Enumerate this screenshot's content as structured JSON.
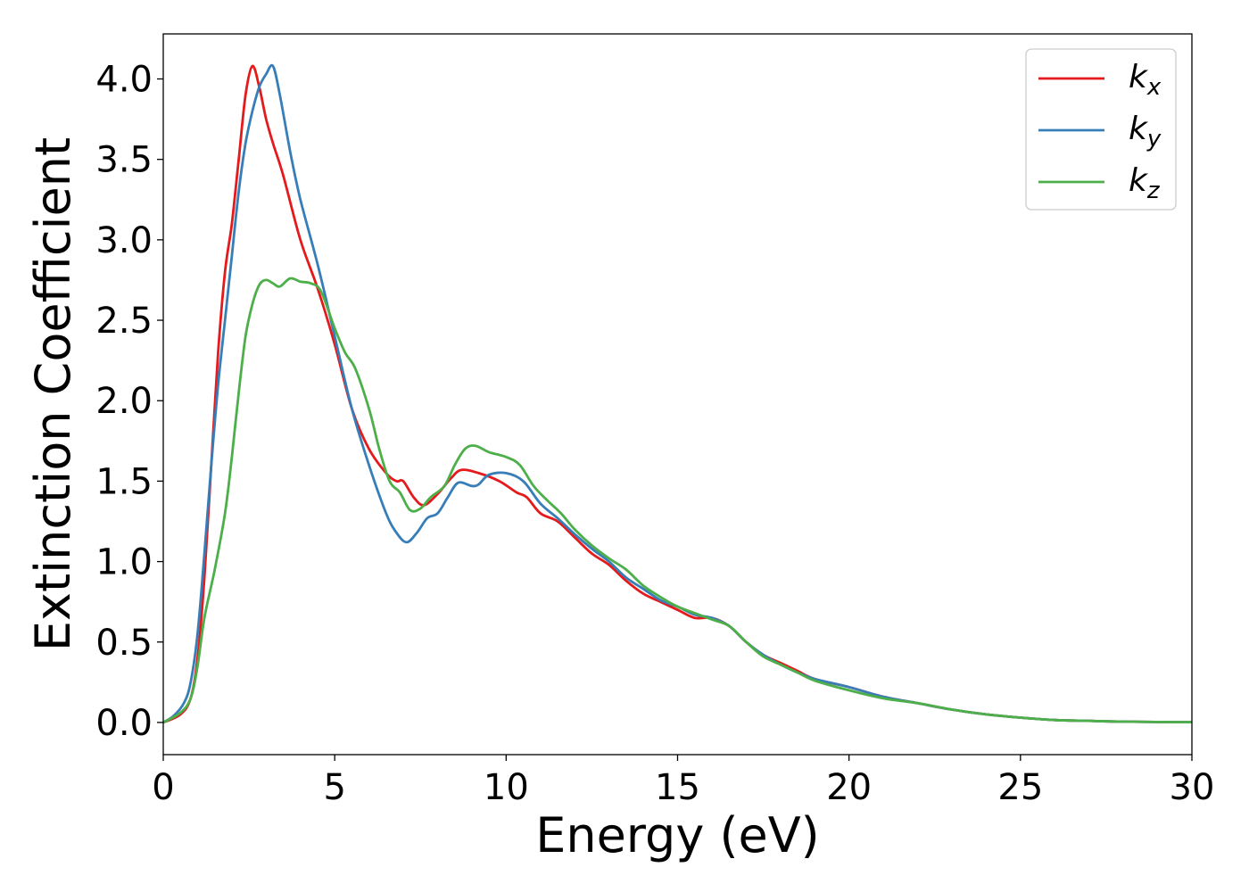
{
  "chart_data": {
    "type": "line",
    "xlabel": "Energy (eV)",
    "ylabel": "Extinction Coefficient",
    "xlim": [
      0,
      30
    ],
    "ylim": [
      -0.2,
      4.28
    ],
    "xticks": [
      0,
      5,
      10,
      15,
      20,
      25,
      30
    ],
    "yticks": [
      0.0,
      0.5,
      1.0,
      1.5,
      2.0,
      2.5,
      3.0,
      3.5,
      4.0
    ],
    "xtick_labels": [
      "0",
      "5",
      "10",
      "15",
      "20",
      "25",
      "30"
    ],
    "ytick_labels": [
      "0.0",
      "0.5",
      "1.0",
      "1.5",
      "2.0",
      "2.5",
      "3.0",
      "3.5",
      "4.0"
    ],
    "grid": false,
    "legend_position": "top-right",
    "series": [
      {
        "name": "k",
        "subscript": "x",
        "color": "#e41a1c",
        "points": [
          [
            0,
            0
          ],
          [
            0.5,
            0.05
          ],
          [
            0.8,
            0.15
          ],
          [
            1.0,
            0.4
          ],
          [
            1.2,
            0.9
          ],
          [
            1.4,
            1.6
          ],
          [
            1.6,
            2.3
          ],
          [
            1.8,
            2.8
          ],
          [
            2.0,
            3.1
          ],
          [
            2.2,
            3.5
          ],
          [
            2.4,
            3.9
          ],
          [
            2.6,
            4.08
          ],
          [
            2.8,
            3.95
          ],
          [
            3.0,
            3.75
          ],
          [
            3.2,
            3.6
          ],
          [
            3.5,
            3.4
          ],
          [
            4.0,
            3.0
          ],
          [
            4.5,
            2.7
          ],
          [
            5.0,
            2.35
          ],
          [
            5.5,
            1.95
          ],
          [
            6.0,
            1.7
          ],
          [
            6.5,
            1.55
          ],
          [
            6.8,
            1.5
          ],
          [
            7.0,
            1.5
          ],
          [
            7.3,
            1.4
          ],
          [
            7.6,
            1.35
          ],
          [
            8.0,
            1.42
          ],
          [
            8.4,
            1.52
          ],
          [
            8.7,
            1.57
          ],
          [
            9.2,
            1.55
          ],
          [
            9.8,
            1.5
          ],
          [
            10.3,
            1.43
          ],
          [
            10.6,
            1.4
          ],
          [
            11.0,
            1.3
          ],
          [
            11.5,
            1.25
          ],
          [
            12.0,
            1.15
          ],
          [
            12.5,
            1.05
          ],
          [
            13.0,
            0.98
          ],
          [
            13.5,
            0.88
          ],
          [
            14.0,
            0.8
          ],
          [
            14.5,
            0.75
          ],
          [
            15.0,
            0.7
          ],
          [
            15.5,
            0.65
          ],
          [
            16.0,
            0.65
          ],
          [
            16.5,
            0.6
          ],
          [
            17.0,
            0.5
          ],
          [
            17.5,
            0.42
          ],
          [
            18.0,
            0.37
          ],
          [
            18.5,
            0.32
          ],
          [
            19.0,
            0.27
          ],
          [
            20.0,
            0.22
          ],
          [
            21.0,
            0.16
          ],
          [
            22.0,
            0.12
          ],
          [
            23.0,
            0.08
          ],
          [
            24.0,
            0.05
          ],
          [
            25.0,
            0.03
          ],
          [
            26.0,
            0.015
          ],
          [
            27.0,
            0.01
          ],
          [
            28.0,
            0.005
          ],
          [
            30.0,
            0.002
          ]
        ]
      },
      {
        "name": "k",
        "subscript": "y",
        "color": "#377eb8",
        "points": [
          [
            0,
            0
          ],
          [
            0.3,
            0.04
          ],
          [
            0.6,
            0.12
          ],
          [
            0.8,
            0.25
          ],
          [
            1.0,
            0.55
          ],
          [
            1.2,
            1.05
          ],
          [
            1.4,
            1.6
          ],
          [
            1.6,
            2.1
          ],
          [
            1.8,
            2.5
          ],
          [
            2.0,
            2.9
          ],
          [
            2.2,
            3.3
          ],
          [
            2.4,
            3.6
          ],
          [
            2.6,
            3.8
          ],
          [
            2.8,
            3.95
          ],
          [
            3.0,
            4.03
          ],
          [
            3.2,
            4.08
          ],
          [
            3.4,
            3.9
          ],
          [
            3.7,
            3.55
          ],
          [
            4.0,
            3.25
          ],
          [
            4.5,
            2.85
          ],
          [
            5.0,
            2.4
          ],
          [
            5.5,
            1.95
          ],
          [
            6.0,
            1.6
          ],
          [
            6.5,
            1.3
          ],
          [
            6.8,
            1.18
          ],
          [
            7.1,
            1.12
          ],
          [
            7.4,
            1.18
          ],
          [
            7.7,
            1.27
          ],
          [
            8.0,
            1.3
          ],
          [
            8.3,
            1.4
          ],
          [
            8.6,
            1.49
          ],
          [
            9.0,
            1.47
          ],
          [
            9.2,
            1.48
          ],
          [
            9.5,
            1.54
          ],
          [
            10.0,
            1.55
          ],
          [
            10.5,
            1.5
          ],
          [
            11.0,
            1.36
          ],
          [
            11.5,
            1.27
          ],
          [
            12.0,
            1.17
          ],
          [
            12.5,
            1.08
          ],
          [
            13.0,
            1.0
          ],
          [
            13.5,
            0.9
          ],
          [
            14.0,
            0.83
          ],
          [
            14.5,
            0.76
          ],
          [
            15.0,
            0.72
          ],
          [
            15.5,
            0.67
          ],
          [
            16.0,
            0.65
          ],
          [
            16.5,
            0.6
          ],
          [
            17.0,
            0.5
          ],
          [
            17.5,
            0.42
          ],
          [
            18.0,
            0.36
          ],
          [
            18.5,
            0.31
          ],
          [
            19.0,
            0.27
          ],
          [
            20.0,
            0.22
          ],
          [
            21.0,
            0.16
          ],
          [
            22.0,
            0.12
          ],
          [
            23.0,
            0.08
          ],
          [
            24.0,
            0.05
          ],
          [
            25.0,
            0.03
          ],
          [
            26.0,
            0.015
          ],
          [
            27.0,
            0.01
          ],
          [
            28.0,
            0.005
          ],
          [
            30.0,
            0.002
          ]
        ]
      },
      {
        "name": "k",
        "subscript": "z",
        "color": "#4daf4a",
        "points": [
          [
            0,
            0
          ],
          [
            0.5,
            0.06
          ],
          [
            0.8,
            0.15
          ],
          [
            1.0,
            0.35
          ],
          [
            1.2,
            0.65
          ],
          [
            1.5,
            0.95
          ],
          [
            1.8,
            1.3
          ],
          [
            2.0,
            1.65
          ],
          [
            2.2,
            2.05
          ],
          [
            2.4,
            2.4
          ],
          [
            2.6,
            2.6
          ],
          [
            2.8,
            2.72
          ],
          [
            3.0,
            2.75
          ],
          [
            3.2,
            2.73
          ],
          [
            3.4,
            2.71
          ],
          [
            3.7,
            2.76
          ],
          [
            4.0,
            2.74
          ],
          [
            4.3,
            2.73
          ],
          [
            4.6,
            2.68
          ],
          [
            5.0,
            2.45
          ],
          [
            5.3,
            2.3
          ],
          [
            5.6,
            2.2
          ],
          [
            6.0,
            1.95
          ],
          [
            6.3,
            1.7
          ],
          [
            6.6,
            1.5
          ],
          [
            6.9,
            1.43
          ],
          [
            7.2,
            1.32
          ],
          [
            7.5,
            1.33
          ],
          [
            7.8,
            1.4
          ],
          [
            8.2,
            1.47
          ],
          [
            8.5,
            1.6
          ],
          [
            8.8,
            1.7
          ],
          [
            9.1,
            1.72
          ],
          [
            9.5,
            1.68
          ],
          [
            10.0,
            1.65
          ],
          [
            10.4,
            1.6
          ],
          [
            10.8,
            1.47
          ],
          [
            11.2,
            1.38
          ],
          [
            11.6,
            1.3
          ],
          [
            12.0,
            1.2
          ],
          [
            12.5,
            1.1
          ],
          [
            13.0,
            1.02
          ],
          [
            13.5,
            0.95
          ],
          [
            14.0,
            0.85
          ],
          [
            14.5,
            0.78
          ],
          [
            15.0,
            0.72
          ],
          [
            15.5,
            0.68
          ],
          [
            16.0,
            0.64
          ],
          [
            16.5,
            0.6
          ],
          [
            17.0,
            0.5
          ],
          [
            17.5,
            0.41
          ],
          [
            18.0,
            0.36
          ],
          [
            18.5,
            0.31
          ],
          [
            19.0,
            0.26
          ],
          [
            20.0,
            0.2
          ],
          [
            21.0,
            0.15
          ],
          [
            22.0,
            0.12
          ],
          [
            23.0,
            0.08
          ],
          [
            24.0,
            0.05
          ],
          [
            25.0,
            0.03
          ],
          [
            26.0,
            0.015
          ],
          [
            27.0,
            0.01
          ],
          [
            28.0,
            0.005
          ],
          [
            30.0,
            0.002
          ]
        ]
      }
    ]
  }
}
